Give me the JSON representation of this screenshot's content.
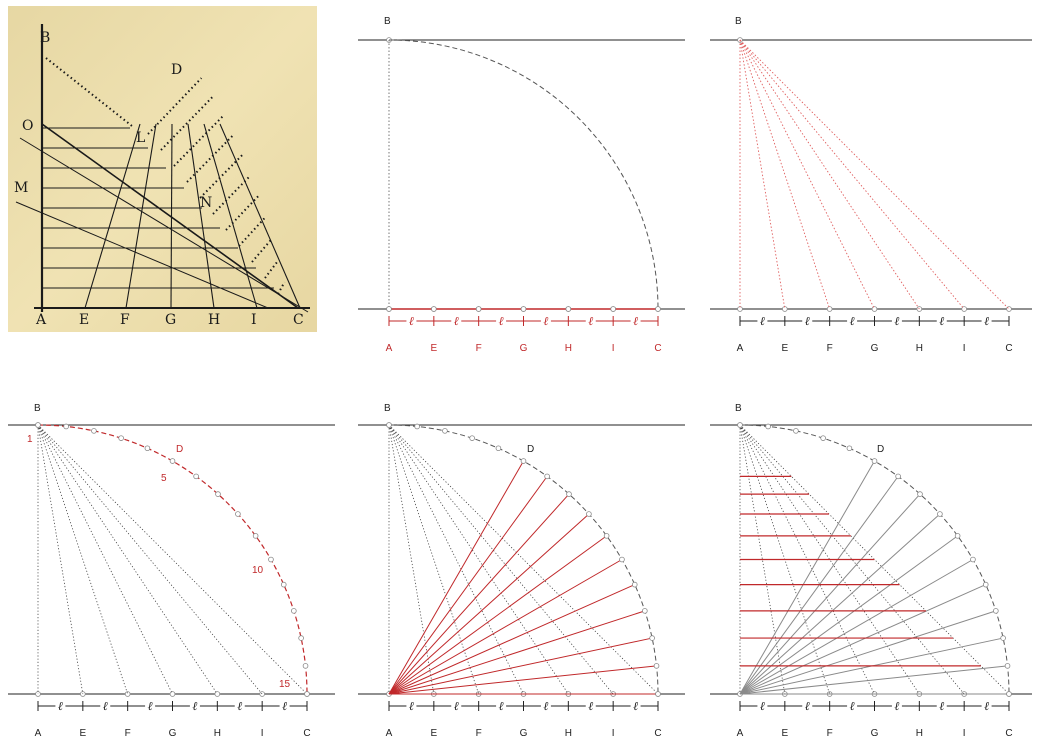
{
  "scan": {
    "labels_top": [
      "B",
      "D"
    ],
    "labels_left": [
      "O",
      "M"
    ],
    "labels_inner": [
      "L",
      "N"
    ],
    "labels_bottom": [
      "A",
      "E",
      "F",
      "G",
      "H",
      "I",
      "C"
    ]
  },
  "panels": [
    {
      "id": "p1",
      "top_label": "B",
      "bottom_labels": [
        "A",
        "E",
        "F",
        "G",
        "H",
        "I",
        "C"
      ],
      "ell": "ℓ"
    },
    {
      "id": "p2",
      "top_label": "B",
      "bottom_labels": [
        "A",
        "E",
        "F",
        "G",
        "H",
        "I",
        "C"
      ],
      "ell": "ℓ"
    },
    {
      "id": "p3",
      "top_label": "B",
      "arc_label": "D",
      "arc_numbers": [
        "1",
        "5",
        "10",
        "15"
      ],
      "bottom_labels": [
        "A",
        "E",
        "F",
        "G",
        "H",
        "I",
        "C"
      ],
      "ell": "ℓ"
    },
    {
      "id": "p4",
      "top_label": "B",
      "arc_label": "D",
      "bottom_labels": [
        "A",
        "E",
        "F",
        "G",
        "H",
        "I",
        "C"
      ],
      "ell": "ℓ"
    },
    {
      "id": "p5",
      "top_label": "B",
      "arc_label": "D",
      "bottom_labels": [
        "A",
        "E",
        "F",
        "G",
        "H",
        "I",
        "C"
      ],
      "ell": "ℓ"
    }
  ],
  "colors": {
    "accent": "#c0282a",
    "line": "#222222",
    "dash": "#555555",
    "gray": "#8a8a8a",
    "scan_bg": "#eee0ae"
  },
  "arc_points": 16,
  "divisions": 6
}
